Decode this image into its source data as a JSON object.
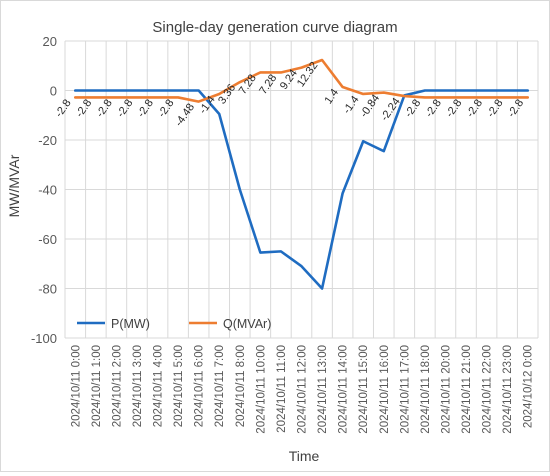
{
  "chart_data": {
    "type": "line",
    "title": "Single-day generation curve diagram",
    "xlabel": "Time",
    "ylabel": "MW/MVAr",
    "ylim": [
      -100,
      20
    ],
    "yticks": [
      20,
      0,
      -20,
      -40,
      -60,
      -80,
      -100
    ],
    "grid": true,
    "legend_position": "bottom-left",
    "categories": [
      "2024/10/11 0:00",
      "2024/10/11 1:00",
      "2024/10/11 2:00",
      "2024/10/11 3:00",
      "2024/10/11 4:00",
      "2024/10/11 5:00",
      "2024/10/11 6:00",
      "2024/10/11 7:00",
      "2024/10/11 8:00",
      "2024/10/11 10:00",
      "2024/10/11 11:00",
      "2024/10/11 12:00",
      "2024/10/11 13:00",
      "2024/10/11 14:00",
      "2024/10/11 15:00",
      "2024/10/11 16:00",
      "2024/10/11 17:00",
      "2024/10/11 18:00",
      "2024/10/11 20:00",
      "2024/10/11 21:00",
      "2024/10/11 22:00",
      "2024/10/11 23:00",
      "2024/10/12 0:00"
    ],
    "series": [
      {
        "name": "P(MW)",
        "color": "#1f6cc1",
        "values": [
          0,
          0,
          0,
          0,
          0,
          0,
          0,
          -9.5,
          -40,
          -65.5,
          -65,
          -71,
          -80,
          -41.5,
          -20.5,
          -24.5,
          -2,
          0,
          0,
          0,
          0,
          0,
          0
        ]
      },
      {
        "name": "Q(MVAr)",
        "color": "#ed7d31",
        "values": [
          -2.8,
          -2.8,
          -2.8,
          -2.8,
          -2.8,
          -2.8,
          -4.48,
          -1.4,
          3.36,
          7.28,
          7.28,
          9.24,
          12.32,
          1.4,
          -1.4,
          -0.84,
          -2.24,
          -2.8,
          -2.8,
          -2.8,
          -2.8,
          -2.8,
          -2.8
        ],
        "data_labels": [
          "-2.8",
          "-2.8",
          "-2.8",
          "-2.8",
          "-2.8",
          "-2.8",
          "-4.48",
          "-1.4",
          "3.36",
          "7.28",
          "7.28",
          "9.24",
          "12.32",
          "1.4",
          "-1.4",
          "-0.84",
          "-2.24",
          "-2.8",
          "-2.8",
          "-2.8",
          "-2.8",
          "-2.8",
          "-2.8"
        ]
      }
    ]
  }
}
